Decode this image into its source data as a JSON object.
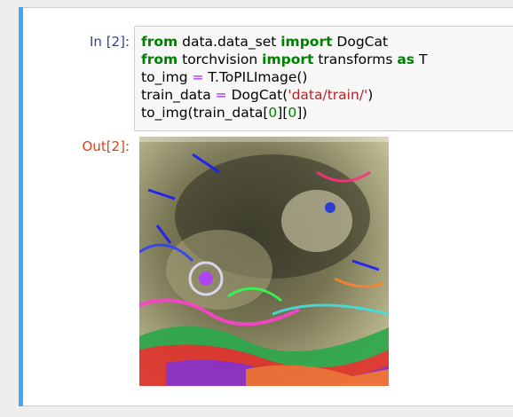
{
  "cell": {
    "in_prompt": "In [2]:",
    "out_prompt": "Out[2]:",
    "code": {
      "line1": {
        "kw1": "from",
        "mod": " data.data_set ",
        "kw2": "import",
        "name": " DogCat"
      },
      "line2": {
        "kw1": "from",
        "mod": " torchvision ",
        "kw2": "import",
        "name": " transforms ",
        "kw3": "as",
        "alias": " T"
      },
      "line3": {
        "lhs": "to_img ",
        "op": "=",
        "rhs": " T.ToPILImage()"
      },
      "line4": {
        "lhs": "train_data ",
        "op": "=",
        "rhs_pre": " DogCat(",
        "str": "'data/train/'",
        "rhs_post": ")"
      },
      "line5": {
        "pre": "to_img(train_data[",
        "n1": "0",
        "mid": "][",
        "n2": "0",
        "post": "])"
      }
    }
  },
  "output": {
    "image_description_icon": "image-icon",
    "colors": {
      "accent_bar": "#42a5f5",
      "in_prompt": "#303f9f",
      "out_prompt": "#d84315"
    }
  }
}
